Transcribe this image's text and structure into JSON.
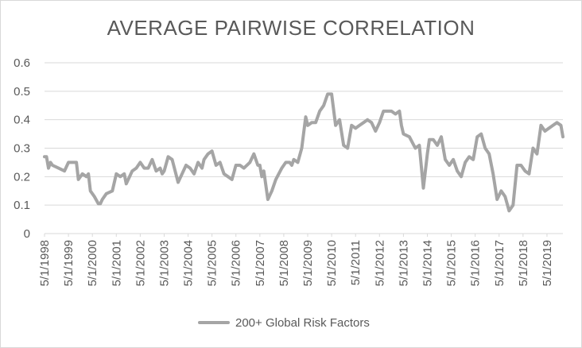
{
  "chart_data": {
    "type": "line",
    "title": "AVERAGE PAIRWISE CORRELATION",
    "xlabel": "",
    "ylabel": "",
    "ylim": [
      0,
      0.6
    ],
    "yticks": [
      "0",
      "0.1",
      "0.2",
      "0.3",
      "0.4",
      "0.5",
      "0.6"
    ],
    "xticks": [
      "5/1/1998",
      "5/1/1999",
      "5/1/2000",
      "5/1/2001",
      "5/1/2002",
      "5/1/2003",
      "5/1/2004",
      "5/1/2005",
      "5/1/2006",
      "5/1/2007",
      "5/1/2008",
      "5/1/2009",
      "5/1/2010",
      "5/1/2011",
      "5/1/2012",
      "5/1/2013",
      "5/1/2014",
      "5/1/2015",
      "5/1/2016",
      "5/1/2017",
      "5/1/2018",
      "5/1/2019"
    ],
    "grid": "horizontal",
    "legend_position": "bottom",
    "series_color": "#a5a5a5",
    "series": [
      {
        "name": "200+ Global Risk Factors",
        "x": [
          "1998-05",
          "1998-06",
          "1998-07",
          "1998-08",
          "1998-09",
          "1998-12",
          "1999-03",
          "1999-05",
          "1999-07",
          "1999-09",
          "1999-10",
          "1999-12",
          "2000-02",
          "2000-03",
          "2000-04",
          "2000-06",
          "2000-08",
          "2000-09",
          "2000-10",
          "2000-12",
          "2001-03",
          "2001-05",
          "2001-07",
          "2001-09",
          "2001-10",
          "2002-01",
          "2002-03",
          "2002-05",
          "2002-07",
          "2002-09",
          "2002-11",
          "2003-01",
          "2003-03",
          "2003-04",
          "2003-05",
          "2003-07",
          "2003-09",
          "2003-12",
          "2004-02",
          "2004-04",
          "2004-06",
          "2004-08",
          "2004-10",
          "2004-12",
          "2005-01",
          "2005-03",
          "2005-05",
          "2005-07",
          "2005-09",
          "2005-11",
          "2006-01",
          "2006-03",
          "2006-05",
          "2006-07",
          "2006-09",
          "2006-12",
          "2007-02",
          "2007-04",
          "2007-05",
          "2007-06",
          "2007-07",
          "2007-09",
          "2007-11",
          "2008-01",
          "2008-04",
          "2008-06",
          "2008-08",
          "2008-09",
          "2008-10",
          "2008-12",
          "2009-02",
          "2009-04",
          "2009-05",
          "2009-07",
          "2009-09",
          "2009-11",
          "2010-01",
          "2010-03",
          "2010-05",
          "2010-07",
          "2010-09",
          "2010-11",
          "2011-01",
          "2011-03",
          "2011-05",
          "2011-07",
          "2011-09",
          "2011-11",
          "2012-01",
          "2012-03",
          "2012-05",
          "2012-07",
          "2012-09",
          "2012-11",
          "2013-01",
          "2013-03",
          "2013-04",
          "2013-05",
          "2013-08",
          "2013-11",
          "2014-01",
          "2014-03",
          "2014-05",
          "2014-06",
          "2014-08",
          "2014-10",
          "2014-12",
          "2015-02",
          "2015-04",
          "2015-06",
          "2015-08",
          "2015-10",
          "2015-12",
          "2016-02",
          "2016-04",
          "2016-06",
          "2016-08",
          "2016-10",
          "2016-12",
          "2017-02",
          "2017-04",
          "2017-06",
          "2017-08",
          "2017-10",
          "2017-12",
          "2018-02",
          "2018-04",
          "2018-06",
          "2018-08",
          "2018-10",
          "2018-12",
          "2019-02",
          "2019-04",
          "2019-06",
          "2019-08",
          "2019-10",
          "2019-12",
          "2020-01"
        ],
        "values": [
          0.27,
          0.27,
          0.23,
          0.25,
          0.24,
          0.23,
          0.22,
          0.25,
          0.25,
          0.25,
          0.19,
          0.21,
          0.2,
          0.21,
          0.15,
          0.13,
          0.105,
          0.105,
          0.12,
          0.14,
          0.15,
          0.21,
          0.2,
          0.21,
          0.175,
          0.22,
          0.23,
          0.25,
          0.23,
          0.23,
          0.26,
          0.22,
          0.23,
          0.21,
          0.22,
          0.27,
          0.26,
          0.18,
          0.21,
          0.24,
          0.23,
          0.21,
          0.25,
          0.23,
          0.26,
          0.28,
          0.29,
          0.24,
          0.25,
          0.21,
          0.2,
          0.19,
          0.24,
          0.24,
          0.23,
          0.25,
          0.28,
          0.24,
          0.24,
          0.2,
          0.22,
          0.12,
          0.15,
          0.19,
          0.23,
          0.25,
          0.25,
          0.24,
          0.26,
          0.25,
          0.3,
          0.41,
          0.38,
          0.39,
          0.39,
          0.43,
          0.45,
          0.49,
          0.49,
          0.38,
          0.4,
          0.31,
          0.3,
          0.38,
          0.37,
          0.38,
          0.39,
          0.4,
          0.39,
          0.36,
          0.39,
          0.43,
          0.43,
          0.43,
          0.42,
          0.43,
          0.38,
          0.35,
          0.34,
          0.3,
          0.31,
          0.16,
          0.28,
          0.33,
          0.33,
          0.31,
          0.34,
          0.26,
          0.24,
          0.26,
          0.22,
          0.2,
          0.25,
          0.27,
          0.26,
          0.34,
          0.35,
          0.3,
          0.28,
          0.21,
          0.12,
          0.15,
          0.13,
          0.08,
          0.1,
          0.24,
          0.24,
          0.22,
          0.21,
          0.3,
          0.28,
          0.38,
          0.36,
          0.37,
          0.38,
          0.39,
          0.38,
          0.34
        ]
      }
    ]
  }
}
